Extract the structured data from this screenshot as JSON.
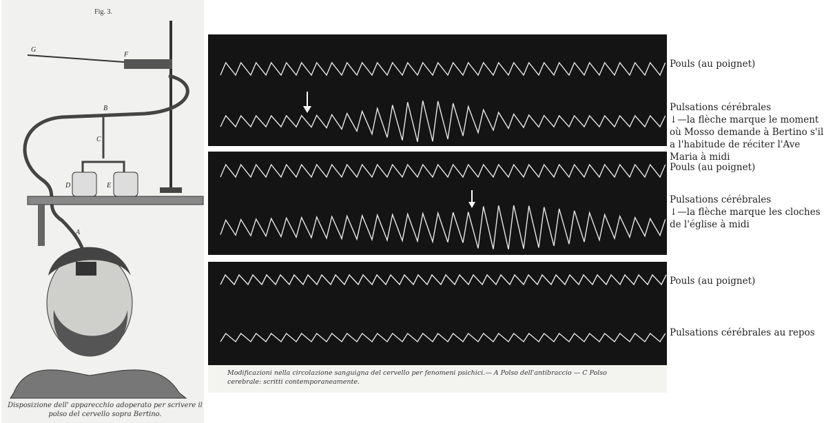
{
  "figure": {
    "label": "Fig. 3.",
    "letters": [
      "G",
      "F",
      "B",
      "C",
      "D",
      "E",
      "A"
    ],
    "caption": "Disposizione dell' apparecchio adoperato per scrivere il polso del cervello sopra Bertino."
  },
  "traces": {
    "caption": "Modificazioni nella circolazione sanguigna del cervello per fenomeni psichici.— A Polso dell'antibraccio — C Polso cerebrale: scritti contemporaneamente.",
    "panels": [
      {
        "pulse_label": "Pouls (au poignet)",
        "brain_label": "Pulsations cérébrales",
        "note": "↓—la flèche marque le moment où Mosso demande à Bertino s'il a l'habitude de réciter l'Ave Maria à midi"
      },
      {
        "pulse_label": "Pouls (au poignet)",
        "brain_label": "Pulsations cérébrales",
        "note": "↓—la flèche marque les cloches de l'église à midi"
      },
      {
        "pulse_label": "Pouls (au poignet)",
        "brain_label": "Pulsations cérébrales au repos"
      }
    ]
  }
}
